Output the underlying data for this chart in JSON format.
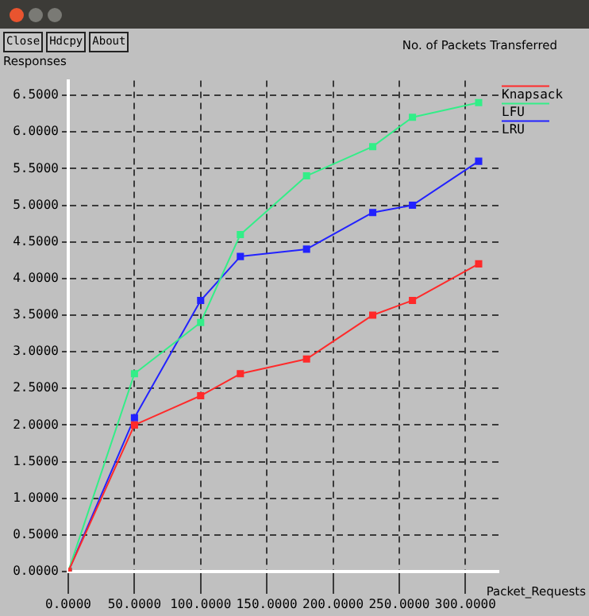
{
  "chart_data": {
    "type": "line",
    "title": "No. of Packets Transferred",
    "xlabel": "Packet_Requests",
    "ylabel": "Responses",
    "series": [
      {
        "name": "Knapsack",
        "color": "#ff2a2a",
        "x": [
          0,
          50,
          100,
          130,
          180,
          230,
          260,
          310
        ],
        "values": [
          0,
          2.0,
          2.4,
          2.7,
          2.9,
          3.5,
          3.7,
          4.2
        ]
      },
      {
        "name": "LFU",
        "color": "#33ee88",
        "x": [
          0,
          50,
          100,
          130,
          180,
          230,
          260,
          310
        ],
        "values": [
          0,
          2.7,
          3.4,
          4.6,
          5.4,
          5.8,
          6.2,
          6.4
        ]
      },
      {
        "name": "LRU",
        "color": "#2222ff",
        "x": [
          0,
          50,
          100,
          130,
          180,
          230,
          260,
          310
        ],
        "values": [
          0,
          2.1,
          3.7,
          4.3,
          4.4,
          4.9,
          5.0,
          5.6
        ]
      }
    ],
    "xlim": [
      0,
      325
    ],
    "ylim": [
      0,
      6.7
    ],
    "xticks": [
      {
        "value": 0,
        "label": "0.0000"
      },
      {
        "value": 50,
        "label": "50.0000"
      },
      {
        "value": 100,
        "label": "100.0000"
      },
      {
        "value": 150,
        "label": "150.0000"
      },
      {
        "value": 200,
        "label": "200.0000"
      },
      {
        "value": 250,
        "label": "250.0000"
      },
      {
        "value": 300,
        "label": "300.0000"
      }
    ],
    "yticks": [
      {
        "value": 0,
        "label": "0.0000"
      },
      {
        "value": 0.5,
        "label": "0.5000"
      },
      {
        "value": 1,
        "label": "1.0000"
      },
      {
        "value": 1.5,
        "label": "1.5000"
      },
      {
        "value": 2,
        "label": "2.0000"
      },
      {
        "value": 2.5,
        "label": "2.5000"
      },
      {
        "value": 3,
        "label": "3.0000"
      },
      {
        "value": 3.5,
        "label": "3.5000"
      },
      {
        "value": 4,
        "label": "4.0000"
      },
      {
        "value": 4.5,
        "label": "4.5000"
      },
      {
        "value": 5,
        "label": "5.0000"
      },
      {
        "value": 5.5,
        "label": "5.5000"
      },
      {
        "value": 6,
        "label": "6.0000"
      },
      {
        "value": 6.5,
        "label": "6.5000"
      }
    ],
    "annotations": [
      "Close",
      "Hdcpy",
      "About"
    ],
    "grid": true,
    "legend": "top right",
    "marker": "square",
    "line_style": "solid"
  }
}
